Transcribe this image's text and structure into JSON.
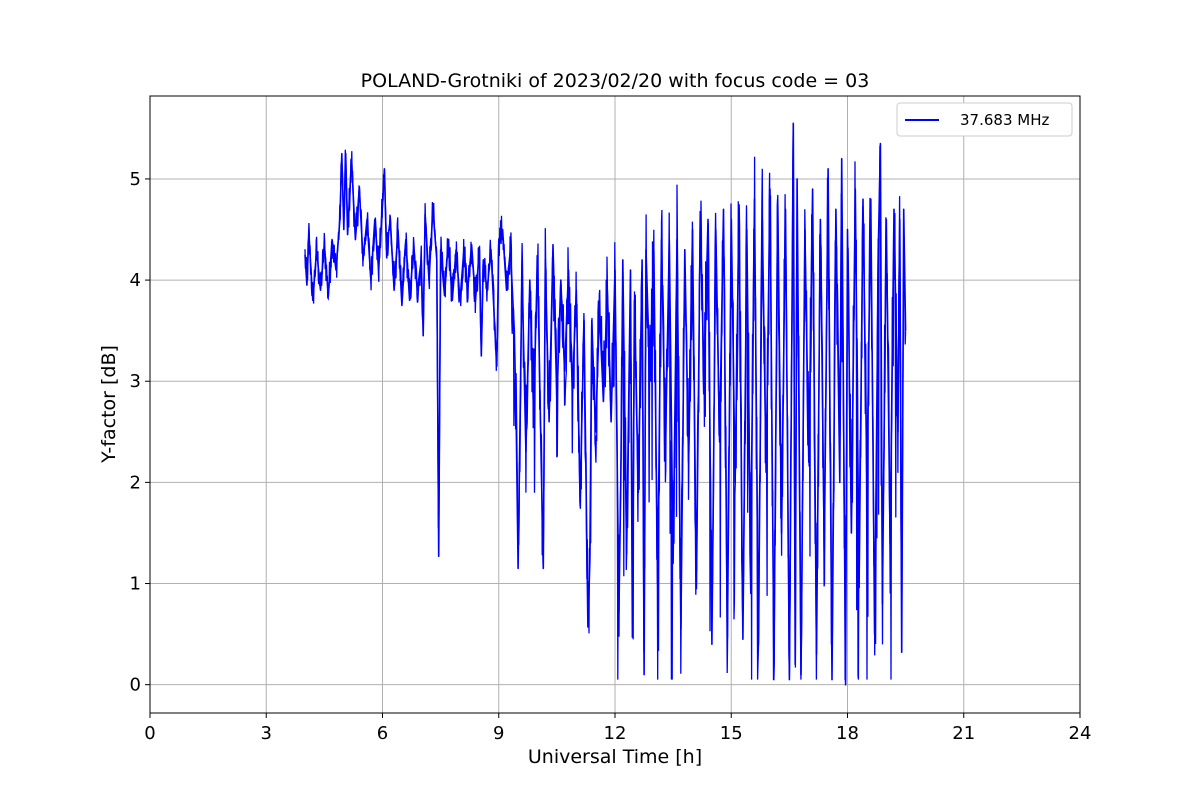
{
  "chart_data": {
    "type": "line",
    "title": "POLAND-Grotniki of 2023/02/20 with focus code = 03",
    "xlabel": "Universal Time [h]",
    "ylabel": "Y-factor [dB]",
    "xlim": [
      0,
      24
    ],
    "ylim": [
      -0.28,
      5.82
    ],
    "xticks": [
      0,
      3,
      6,
      9,
      12,
      15,
      18,
      21,
      24
    ],
    "yticks": [
      0,
      1,
      2,
      3,
      4,
      5
    ],
    "grid": true,
    "legend_position": "top-right",
    "series": [
      {
        "name": "37.683 MHz",
        "color": "#0000ff",
        "x_start": 4.0,
        "x_end": 19.5,
        "points": [
          [
            4.0,
            4.25
          ],
          [
            4.05,
            3.95
          ],
          [
            4.1,
            4.45
          ],
          [
            4.2,
            3.8
          ],
          [
            4.3,
            4.3
          ],
          [
            4.4,
            3.9
          ],
          [
            4.5,
            4.35
          ],
          [
            4.6,
            3.85
          ],
          [
            4.7,
            4.4
          ],
          [
            4.8,
            4.1
          ],
          [
            4.9,
            4.6
          ],
          [
            4.95,
            5.25
          ],
          [
            5.0,
            4.5
          ],
          [
            5.05,
            5.25
          ],
          [
            5.1,
            4.45
          ],
          [
            5.2,
            5.2
          ],
          [
            5.3,
            4.4
          ],
          [
            5.4,
            4.9
          ],
          [
            5.5,
            4.2
          ],
          [
            5.6,
            4.6
          ],
          [
            5.7,
            4.0
          ],
          [
            5.8,
            4.6
          ],
          [
            5.9,
            4.1
          ],
          [
            6.0,
            4.75
          ],
          [
            6.05,
            5.1
          ],
          [
            6.1,
            4.3
          ],
          [
            6.2,
            4.6
          ],
          [
            6.3,
            3.9
          ],
          [
            6.4,
            4.5
          ],
          [
            6.5,
            3.75
          ],
          [
            6.6,
            4.4
          ],
          [
            6.7,
            3.8
          ],
          [
            6.8,
            4.3
          ],
          [
            6.9,
            3.9
          ],
          [
            7.0,
            4.2
          ],
          [
            7.05,
            3.45
          ],
          [
            7.1,
            4.65
          ],
          [
            7.2,
            4.0
          ],
          [
            7.3,
            4.7
          ],
          [
            7.4,
            4.2
          ],
          [
            7.45,
            1.27
          ],
          [
            7.5,
            4.3
          ],
          [
            7.6,
            3.85
          ],
          [
            7.7,
            4.4
          ],
          [
            7.8,
            3.8
          ],
          [
            7.9,
            4.3
          ],
          [
            8.0,
            3.8
          ],
          [
            8.1,
            4.3
          ],
          [
            8.2,
            3.9
          ],
          [
            8.3,
            4.35
          ],
          [
            8.4,
            3.8
          ],
          [
            8.5,
            4.3
          ],
          [
            8.55,
            3.25
          ],
          [
            8.6,
            4.2
          ],
          [
            8.7,
            3.9
          ],
          [
            8.8,
            4.3
          ],
          [
            8.9,
            3.5
          ],
          [
            8.95,
            3.15
          ],
          [
            9.0,
            4.4
          ],
          [
            9.1,
            4.5
          ],
          [
            9.2,
            3.9
          ],
          [
            9.3,
            4.3
          ],
          [
            9.4,
            3.5
          ],
          [
            9.45,
            2.6
          ],
          [
            9.5,
            1.15
          ],
          [
            9.6,
            4.1
          ],
          [
            9.7,
            2.3
          ],
          [
            9.8,
            4.0
          ],
          [
            9.9,
            2.7
          ],
          [
            10.0,
            4.2
          ],
          [
            10.1,
            2.1
          ],
          [
            10.15,
            1.15
          ],
          [
            10.2,
            4.2
          ],
          [
            10.3,
            2.6
          ],
          [
            10.4,
            4.35
          ],
          [
            10.5,
            2.8
          ],
          [
            10.6,
            4.0
          ],
          [
            10.7,
            3.1
          ],
          [
            10.8,
            4.1
          ],
          [
            10.9,
            2.9
          ],
          [
            11.0,
            3.9
          ],
          [
            11.1,
            1.8
          ],
          [
            11.2,
            3.6
          ],
          [
            11.3,
            0.57
          ],
          [
            11.35,
            1.2
          ],
          [
            11.4,
            3.6
          ],
          [
            11.5,
            2.5
          ],
          [
            11.6,
            3.7
          ],
          [
            11.7,
            2.8
          ],
          [
            11.8,
            3.9
          ],
          [
            11.9,
            2.6
          ],
          [
            12.0,
            4.1
          ],
          [
            12.1,
            0.72
          ],
          [
            12.15,
            2.0
          ],
          [
            12.2,
            4.2
          ],
          [
            12.3,
            1.3
          ],
          [
            12.4,
            4.1
          ],
          [
            12.45,
            0.47
          ],
          [
            12.5,
            3.8
          ],
          [
            12.6,
            1.9
          ],
          [
            12.7,
            4.2
          ],
          [
            12.75,
            0.1
          ],
          [
            12.8,
            4.3
          ],
          [
            12.9,
            3.0
          ],
          [
            13.0,
            4.3
          ],
          [
            13.1,
            1.0
          ],
          [
            13.2,
            4.4
          ],
          [
            13.3,
            2.3
          ],
          [
            13.4,
            4.4
          ],
          [
            13.5,
            1.2
          ],
          [
            13.6,
            4.4
          ],
          [
            13.7,
            0.55
          ],
          [
            13.8,
            4.3
          ],
          [
            13.9,
            2.2
          ],
          [
            14.0,
            4.5
          ],
          [
            14.1,
            0.95
          ],
          [
            14.2,
            4.6
          ],
          [
            14.3,
            3.0
          ],
          [
            14.4,
            4.6
          ],
          [
            14.5,
            0.4
          ],
          [
            14.6,
            4.5
          ],
          [
            14.7,
            2.4
          ],
          [
            14.8,
            4.7
          ],
          [
            14.9,
            0.47
          ],
          [
            15.0,
            4.6
          ],
          [
            15.1,
            2.0
          ],
          [
            15.2,
            4.7
          ],
          [
            15.3,
            0.45
          ],
          [
            15.4,
            4.5
          ],
          [
            15.5,
            1.2
          ],
          [
            15.6,
            4.8
          ],
          [
            15.7,
            0.4
          ],
          [
            15.8,
            4.6
          ],
          [
            15.9,
            2.1
          ],
          [
            16.0,
            4.9
          ],
          [
            16.1,
            0.2
          ],
          [
            16.2,
            4.8
          ],
          [
            16.3,
            1.5
          ],
          [
            16.4,
            4.7
          ],
          [
            16.5,
            0.05
          ],
          [
            16.6,
            5.55
          ],
          [
            16.65,
            0.2
          ],
          [
            16.7,
            5.0
          ],
          [
            16.8,
            0.1
          ],
          [
            16.9,
            4.5
          ],
          [
            17.0,
            2.2
          ],
          [
            17.1,
            4.9
          ],
          [
            17.2,
            0.3
          ],
          [
            17.3,
            4.6
          ],
          [
            17.4,
            1.3
          ],
          [
            17.5,
            5.1
          ],
          [
            17.6,
            0.05
          ],
          [
            17.7,
            4.7
          ],
          [
            17.8,
            2.0
          ],
          [
            17.85,
            5.2
          ],
          [
            17.95,
            0.0
          ],
          [
            18.0,
            4.5
          ],
          [
            18.1,
            1.5
          ],
          [
            18.2,
            4.9
          ],
          [
            18.3,
            1.0
          ],
          [
            18.4,
            4.8
          ],
          [
            18.5,
            2.0
          ],
          [
            18.6,
            4.8
          ],
          [
            18.7,
            0.5
          ],
          [
            18.8,
            4.4
          ],
          [
            18.85,
            5.35
          ],
          [
            18.9,
            0.8
          ],
          [
            19.0,
            4.6
          ],
          [
            19.1,
            1.4
          ],
          [
            19.2,
            4.7
          ],
          [
            19.3,
            2.5
          ],
          [
            19.35,
            4.6
          ],
          [
            19.4,
            0.32
          ],
          [
            19.45,
            4.7
          ],
          [
            19.5,
            3.5
          ]
        ]
      }
    ]
  }
}
